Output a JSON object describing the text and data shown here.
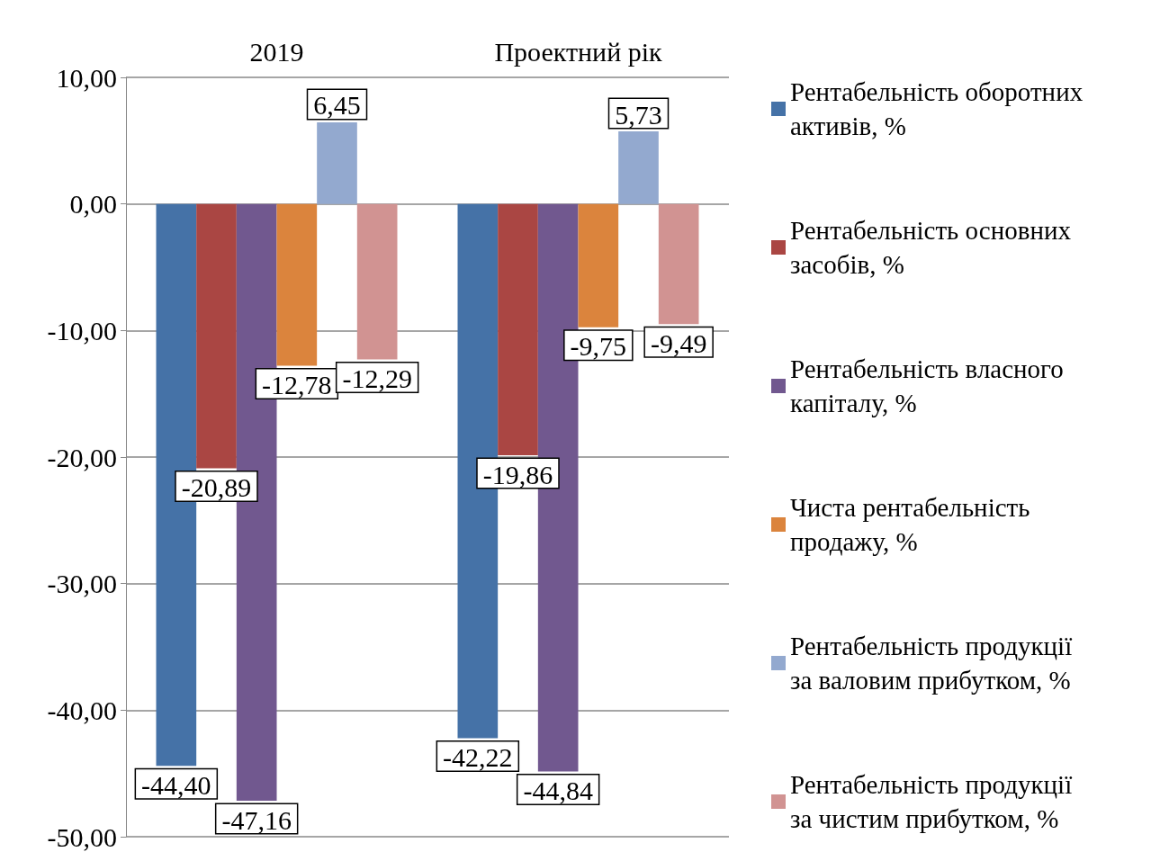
{
  "chart_data": {
    "type": "bar",
    "categories": [
      "2019",
      "Проектний рік"
    ],
    "series": [
      {
        "name": "Рентабельність оборотних активів, %",
        "color": "#4572a7",
        "values": [
          -44.4,
          -42.22
        ],
        "value_labels": [
          "-44,40",
          "-42,22"
        ]
      },
      {
        "name": "Рентабельність основних засобів, %",
        "color": "#aa4643",
        "values": [
          -20.89,
          -19.86
        ],
        "value_labels": [
          "-20,89",
          "-19,86"
        ]
      },
      {
        "name": "Рентабельність власного капіталу, %",
        "color": "#71588f",
        "values": [
          -47.16,
          -44.84
        ],
        "value_labels": [
          "-47,16",
          "-44,84"
        ]
      },
      {
        "name": "Чиста рентабельність продажу, %",
        "color": "#db843d",
        "values": [
          -12.78,
          -9.75
        ],
        "value_labels": [
          "-12,78",
          "-9,75"
        ]
      },
      {
        "name": "Рентабельність продукції за валовим прибутком, %",
        "color": "#93a9cf",
        "values": [
          6.45,
          5.73
        ],
        "value_labels": [
          "6,45",
          "5,73"
        ]
      },
      {
        "name": "Рентабельність продукції за чистим прибутком, %",
        "color": "#d19392",
        "values": [
          -12.29,
          -9.49
        ],
        "value_labels": [
          "-12,29",
          "-9,49"
        ]
      }
    ],
    "ylim": [
      -50,
      10
    ],
    "yticks": [
      {
        "value": -50,
        "label": "-50,00"
      },
      {
        "value": -40,
        "label": "-40,00"
      },
      {
        "value": -30,
        "label": "-30,00"
      },
      {
        "value": -20,
        "label": "-20,00"
      },
      {
        "value": -10,
        "label": "-10,00"
      },
      {
        "value": 0,
        "label": "0,00"
      },
      {
        "value": 10,
        "label": "10,00"
      }
    ],
    "grid": "y",
    "legend": "right"
  }
}
